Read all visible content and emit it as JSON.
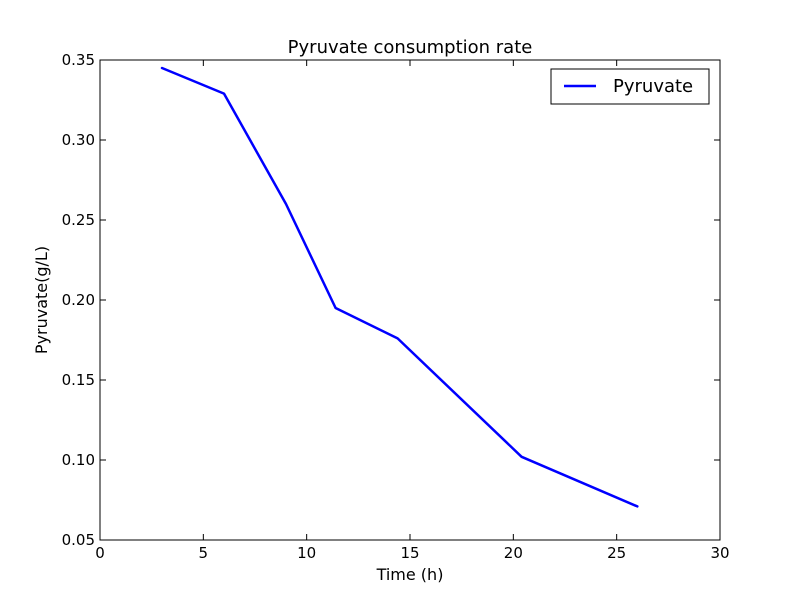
{
  "chart_data": {
    "type": "line",
    "title": "Pyruvate consumption rate",
    "xlabel": "Time (h)",
    "ylabel": "Pyruvate(g/L)",
    "xlim": [
      0,
      30
    ],
    "ylim": [
      0.05,
      0.35
    ],
    "x_ticks": [
      "0",
      "5",
      "10",
      "15",
      "20",
      "25",
      "30"
    ],
    "y_ticks": [
      "0.05",
      "0.10",
      "0.15",
      "0.20",
      "0.25",
      "0.30",
      "0.35"
    ],
    "grid": false,
    "legend": {
      "placement": "top-right"
    },
    "series": [
      {
        "name": "Pyruvate",
        "color": "#0000ff",
        "x": [
          3,
          6,
          9,
          11.4,
          14.4,
          20.4,
          26
        ],
        "y": [
          0.345,
          0.329,
          0.26,
          0.195,
          0.176,
          0.102,
          0.071
        ]
      }
    ]
  }
}
